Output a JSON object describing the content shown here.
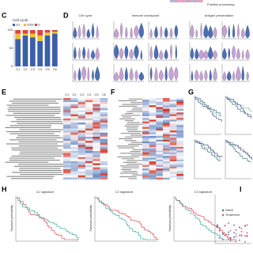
{
  "header": {
    "fragment": "Positive processing"
  },
  "chart_data": {
    "type": "stacked_bar",
    "label": "C",
    "title": "Cell cycle",
    "categories": [
      "C1",
      "C2",
      "C3",
      "C4",
      "C5",
      "C6"
    ],
    "series": [
      {
        "name": "G1",
        "color": "#3b5fa8",
        "values": [
          75,
          85,
          80,
          70,
          85,
          90
        ]
      },
      {
        "name": "G2M",
        "color": "#f2c12e",
        "values": [
          15,
          5,
          10,
          15,
          8,
          5
        ]
      },
      {
        "name": "S",
        "color": "#d9473a",
        "values": [
          10,
          10,
          10,
          15,
          7,
          5
        ]
      }
    ],
    "ylim": [
      0,
      100
    ],
    "yticks": [
      0,
      50,
      100
    ]
  },
  "panels": {
    "d": {
      "label": "D",
      "groups": [
        "Cell cycle",
        "Immune checkpoint",
        "Antigen presentation"
      ]
    },
    "e": {
      "label": "E",
      "columns": [
        "C1",
        "C2",
        "C3",
        "C4",
        "C5",
        "C6"
      ]
    },
    "f": {
      "label": "F"
    },
    "g": {
      "label": "G"
    },
    "h": {
      "label": "H",
      "titles": [
        "C1 signature",
        "C2 signature",
        "C3 signature"
      ],
      "y_label": "Survival probability"
    },
    "i": {
      "label": "I",
      "legend": [
        "Naive",
        "Treatment"
      ]
    }
  }
}
